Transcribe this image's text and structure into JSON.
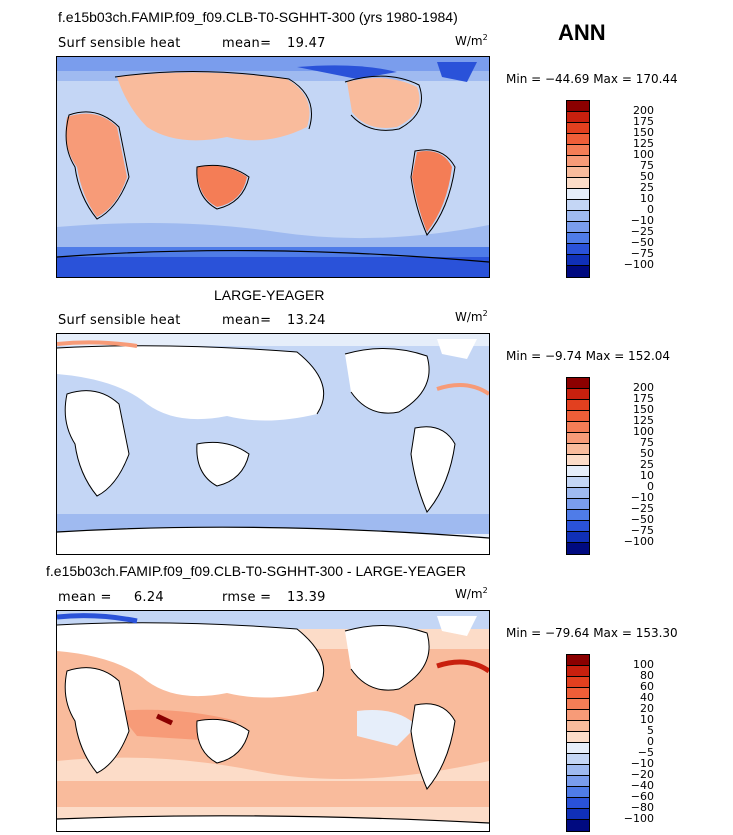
{
  "season": "ANN",
  "panels": [
    {
      "title": "f.e15b03ch.FAMIP.f09_f09.CLB-T0-SGHHT-300 (yrs 1980-1984)",
      "left_label": "Surf sensible heat",
      "stat_label": "mean=",
      "stat_value": "19.47",
      "units": "W/m",
      "units_sup": "2",
      "minmax": "Min = −44.69 Max = 170.44"
    },
    {
      "title": "LARGE-YEAGER",
      "left_label": "Surf sensible heat",
      "stat_label": "mean=",
      "stat_value": "13.24",
      "units": "W/m",
      "units_sup": "2",
      "minmax": "Min =  −9.74 Max = 152.04"
    },
    {
      "title": "f.e15b03ch.FAMIP.f09_f09.CLB-T0-SGHHT-300 - LARGE-YEAGER",
      "left_label": "mean =     6.24",
      "stat_label": "rmse =",
      "stat_value": "13.39",
      "units": "W/m",
      "units_sup": "2",
      "minmax": "Min = −79.64 Max = 153.30"
    }
  ],
  "colorbars": {
    "abs": {
      "labels": [
        "200",
        "175",
        "150",
        "125",
        "100",
        "75",
        "50",
        "25",
        "10",
        "0",
        "−10",
        "−25",
        "−50",
        "−75",
        "−100"
      ],
      "colors": [
        "#8b0000",
        "#c8200e",
        "#e2401f",
        "#ef5e38",
        "#f47d56",
        "#f79b78",
        "#f9bb9c",
        "#fcdcc8",
        "#e6eefa",
        "#c4d6f5",
        "#9fbaf0",
        "#7a9ded",
        "#4f7ce8",
        "#2a52d9",
        "#1030b8",
        "#000a80"
      ]
    },
    "diff": {
      "labels": [
        "100",
        "80",
        "60",
        "40",
        "20",
        "10",
        "5",
        "0",
        "−5",
        "−10",
        "−20",
        "−40",
        "−60",
        "−80",
        "−100"
      ],
      "colors": [
        "#8b0000",
        "#c8200e",
        "#e2401f",
        "#ef5e38",
        "#f47d56",
        "#f79b78",
        "#f9bb9c",
        "#fcdcc8",
        "#e6eefa",
        "#c4d6f5",
        "#9fbaf0",
        "#7a9ded",
        "#4f7ce8",
        "#2a52d9",
        "#1030b8",
        "#000a80"
      ]
    }
  }
}
